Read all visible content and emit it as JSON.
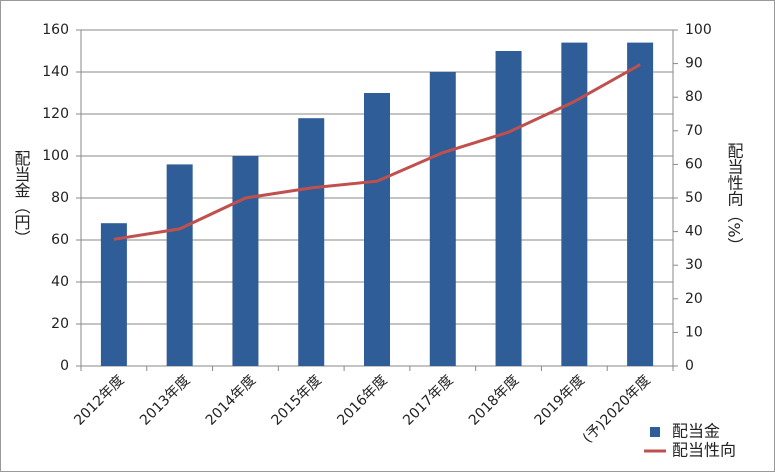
{
  "chart_data": {
    "type": "bar",
    "categories": [
      "2012年度",
      "2013年度",
      "2014年度",
      "2015年度",
      "2016年度",
      "2017年度",
      "2018年度",
      "2019年度",
      "(予)2020年度"
    ],
    "series": [
      {
        "name": "配当金",
        "type": "bar",
        "color": "#2f5d98",
        "values": [
          68,
          96,
          100,
          118,
          130,
          140,
          150,
          154,
          154
        ]
      },
      {
        "name": "配当性向",
        "type": "line",
        "axis": "y2",
        "color": "#c0504d",
        "values": [
          37.7,
          40.8,
          50,
          53,
          55,
          63.5,
          69.6,
          78.7,
          89.7
        ]
      }
    ],
    "y_label": "配当金（円）",
    "y2_label": "配当性向（%）",
    "ylim": [
      0,
      160
    ],
    "yticks": [
      0,
      20,
      40,
      60,
      80,
      100,
      120,
      140,
      160
    ],
    "y2lim": [
      0,
      100
    ],
    "y2ticks": [
      0,
      10,
      20,
      30,
      40,
      50,
      60,
      70,
      80,
      90,
      100
    ],
    "grid": true,
    "legend": "bottom-right"
  }
}
